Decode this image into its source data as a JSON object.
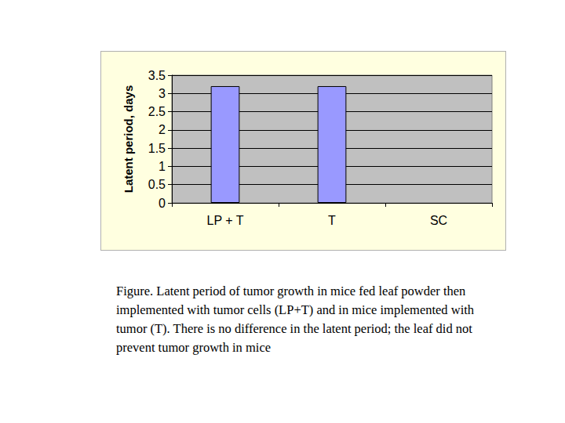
{
  "chart_data": {
    "type": "bar",
    "ylabel": "Latent period, days",
    "categories": [
      "LP + T",
      "T",
      "SC"
    ],
    "values": [
      3.2,
      3.2,
      null
    ],
    "color": "#9999FF",
    "ylim": [
      0,
      3.5
    ],
    "yticks": [
      0,
      0.5,
      1,
      1.5,
      2,
      2.5,
      3,
      3.5
    ],
    "grid": true,
    "caption": "Figure. Latent period of tumor growth in mice fed leaf powder then implemented with tumor cells (LP+T) and in mice implemented with tumor (T). There is no difference in the latent period; the leaf did not prevent tumor growth in mice"
  }
}
